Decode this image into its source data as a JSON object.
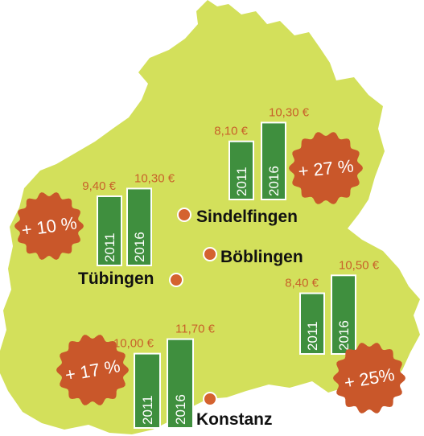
{
  "colors": {
    "land": "#d3e05b",
    "bar": "#3f8f3e",
    "price_text": "#c8612a",
    "dot": "#d4622f",
    "badge": "#c9572a",
    "city_text": "#111111"
  },
  "cities": [
    {
      "name": "Sindelfingen"
    },
    {
      "name": "Böblingen"
    },
    {
      "name": "Tübingen"
    },
    {
      "name": "Konstanz"
    }
  ],
  "chart_data": [
    {
      "type": "bar",
      "categories": [
        "2011",
        "2016"
      ],
      "values": [
        9.4,
        10.3
      ],
      "value_labels": [
        "9,40 €",
        "10,30 €"
      ],
      "change_label": "+ 10 %"
    },
    {
      "type": "bar",
      "categories": [
        "2011",
        "2016"
      ],
      "values": [
        8.1,
        10.3
      ],
      "value_labels": [
        "8,10 €",
        "10,30 €"
      ],
      "change_label": "+ 27 %"
    },
    {
      "type": "bar",
      "categories": [
        "2011",
        "2016"
      ],
      "values": [
        8.4,
        10.5
      ],
      "value_labels": [
        "8,40 €",
        "10,50 €"
      ],
      "change_label": "+ 25%"
    },
    {
      "type": "bar",
      "categories": [
        "2011",
        "2016"
      ],
      "values": [
        10.0,
        11.7
      ],
      "value_labels": [
        "10,00 €",
        "11,70 €"
      ],
      "change_label": "+ 17 %"
    }
  ]
}
